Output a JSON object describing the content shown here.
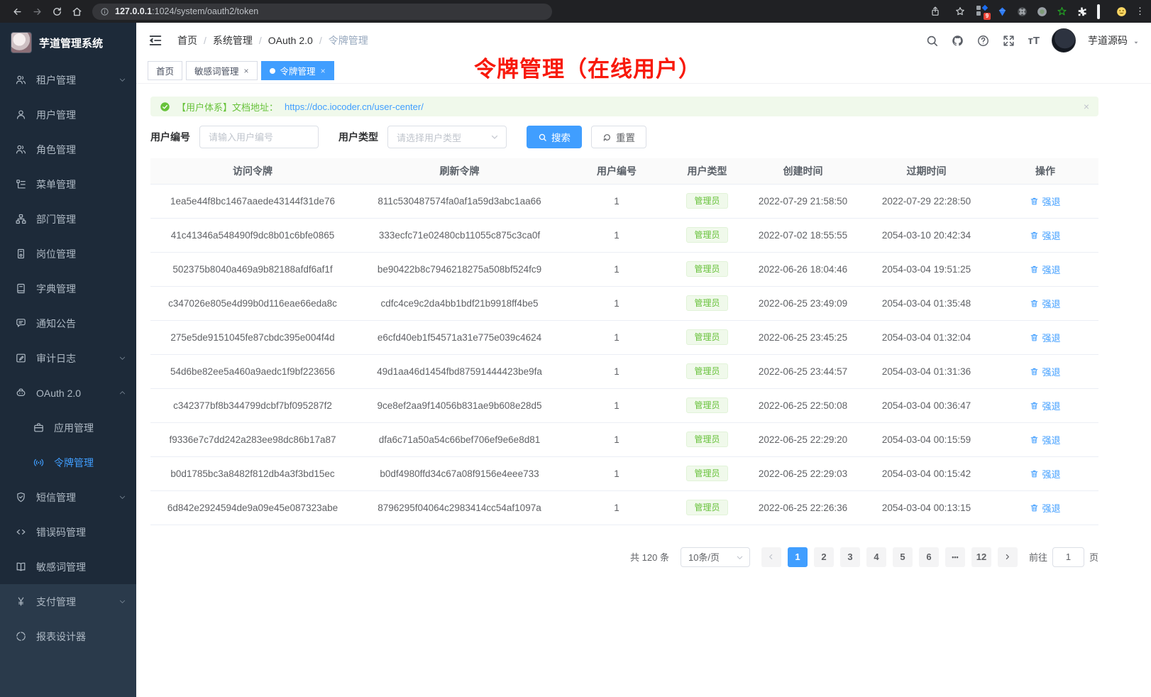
{
  "browser": {
    "url_host": "127.0.0.1",
    "url_path": ":1024/system/oauth2/token",
    "extension_badge": "9"
  },
  "sidebar": {
    "app_title": "芋道管理系统",
    "menu": [
      {
        "key": "tenant",
        "label": "租户管理",
        "icon": "users-icon",
        "chevron": "down"
      },
      {
        "key": "user",
        "label": "用户管理",
        "icon": "user-icon"
      },
      {
        "key": "role",
        "label": "角色管理",
        "icon": "users-icon"
      },
      {
        "key": "menu",
        "label": "菜单管理",
        "icon": "menu-tree-icon"
      },
      {
        "key": "dept",
        "label": "部门管理",
        "icon": "org-icon"
      },
      {
        "key": "post",
        "label": "岗位管理",
        "icon": "badge-icon"
      },
      {
        "key": "dict",
        "label": "字典管理",
        "icon": "dict-icon"
      },
      {
        "key": "notice",
        "label": "通知公告",
        "icon": "message-icon"
      },
      {
        "key": "audit-log",
        "label": "审计日志",
        "icon": "edit-icon",
        "chevron": "down"
      },
      {
        "key": "oauth2",
        "label": "OAuth 2.0",
        "icon": "robot-icon",
        "chevron": "up"
      },
      {
        "key": "oauth2-app",
        "label": "应用管理",
        "icon": "briefcase-icon",
        "sub": true
      },
      {
        "key": "oauth2-token",
        "label": "令牌管理",
        "icon": "signal-icon",
        "sub": true,
        "active": true
      },
      {
        "key": "sms",
        "label": "短信管理",
        "icon": "shield-icon",
        "chevron": "down"
      },
      {
        "key": "error-code",
        "label": "错误码管理",
        "icon": "code-icon"
      },
      {
        "key": "sensitive-word",
        "label": "敏感词管理",
        "icon": "open-book-icon"
      },
      {
        "key": "pay",
        "label": "支付管理",
        "icon": "yen-icon",
        "chevron": "down",
        "section": "bottom"
      },
      {
        "key": "report-designer",
        "label": "报表设计器",
        "icon": "loader-icon",
        "section": "bottom"
      }
    ]
  },
  "topbar": {
    "breadcrumbs": [
      "首页",
      "系统管理",
      "OAuth 2.0",
      "令牌管理"
    ],
    "user_name": "芋道源码"
  },
  "annotation_text": "令牌管理（在线用户）",
  "tabs": [
    {
      "label": "首页"
    },
    {
      "label": "敏感词管理",
      "closable": true
    },
    {
      "label": "令牌管理",
      "closable": true,
      "active": true
    }
  ],
  "alert": {
    "prefix": "【用户体系】文档地址：",
    "link": "https://doc.iocoder.cn/user-center/",
    "close_label": "×"
  },
  "filters": {
    "user_id_label": "用户编号",
    "user_id_placeholder": "请输入用户编号",
    "user_type_label": "用户类型",
    "user_type_placeholder": "请选择用户类型",
    "search_label": "搜索",
    "reset_label": "重置"
  },
  "table": {
    "headers": [
      "访问令牌",
      "刷新令牌",
      "用户编号",
      "用户类型",
      "创建时间",
      "过期时间",
      "操作"
    ],
    "action_label": "强退",
    "rows": [
      {
        "access": "1ea5e44f8bc1467aaede43144f31de76",
        "refresh": "811c530487574fa0af1a59d3abc1aa66",
        "user_id": "1",
        "user_type": "管理员",
        "created": "2022-07-29 21:58:50",
        "expires": "2022-07-29 22:28:50"
      },
      {
        "access": "41c41346a548490f9dc8b01c6bfe0865",
        "refresh": "333ecfc71e02480cb11055c875c3ca0f",
        "user_id": "1",
        "user_type": "管理员",
        "created": "2022-07-02 18:55:55",
        "expires": "2054-03-10 20:42:34"
      },
      {
        "access": "502375b8040a469a9b82188afdf6af1f",
        "refresh": "be90422b8c7946218275a508bf524fc9",
        "user_id": "1",
        "user_type": "管理员",
        "created": "2022-06-26 18:04:46",
        "expires": "2054-03-04 19:51:25"
      },
      {
        "access": "c347026e805e4d99b0d116eae66eda8c",
        "refresh": "cdfc4ce9c2da4bb1bdf21b9918ff4be5",
        "user_id": "1",
        "user_type": "管理员",
        "created": "2022-06-25 23:49:09",
        "expires": "2054-03-04 01:35:48"
      },
      {
        "access": "275e5de9151045fe87cbdc395e004f4d",
        "refresh": "e6cfd40eb1f54571a31e775e039c4624",
        "user_id": "1",
        "user_type": "管理员",
        "created": "2022-06-25 23:45:25",
        "expires": "2054-03-04 01:32:04"
      },
      {
        "access": "54d6be82ee5a460a9aedc1f9bf223656",
        "refresh": "49d1aa46d1454fbd87591444423be9fa",
        "user_id": "1",
        "user_type": "管理员",
        "created": "2022-06-25 23:44:57",
        "expires": "2054-03-04 01:31:36"
      },
      {
        "access": "c342377bf8b344799dcbf7bf095287f2",
        "refresh": "9ce8ef2aa9f14056b831ae9b608e28d5",
        "user_id": "1",
        "user_type": "管理员",
        "created": "2022-06-25 22:50:08",
        "expires": "2054-03-04 00:36:47"
      },
      {
        "access": "f9336e7c7dd242a283ee98dc86b17a87",
        "refresh": "dfa6c71a50a54c66bef706ef9e6e8d81",
        "user_id": "1",
        "user_type": "管理员",
        "created": "2022-06-25 22:29:20",
        "expires": "2054-03-04 00:15:59"
      },
      {
        "access": "b0d1785bc3a8482f812db4a3f3bd15ec",
        "refresh": "b0df4980ffd34c67a08f9156e4eee733",
        "user_id": "1",
        "user_type": "管理员",
        "created": "2022-06-25 22:29:03",
        "expires": "2054-03-04 00:15:42"
      },
      {
        "access": "6d842e2924594de9a09e45e087323abe",
        "refresh": "8796295f04064c2983414cc54af1097a",
        "user_id": "1",
        "user_type": "管理员",
        "created": "2022-06-25 22:26:36",
        "expires": "2054-03-04 00:13:15"
      }
    ]
  },
  "pagination": {
    "total_label": "共 120 条",
    "page_size_label": "10条/页",
    "pages": [
      "1",
      "2",
      "3",
      "4",
      "5",
      "6",
      "...",
      "12"
    ],
    "active_page": "1",
    "jump_prefix": "前往",
    "jump_value": "1",
    "jump_suffix": "页"
  },
  "icons_text": {
    "close": "×",
    "font_size": "тT"
  }
}
